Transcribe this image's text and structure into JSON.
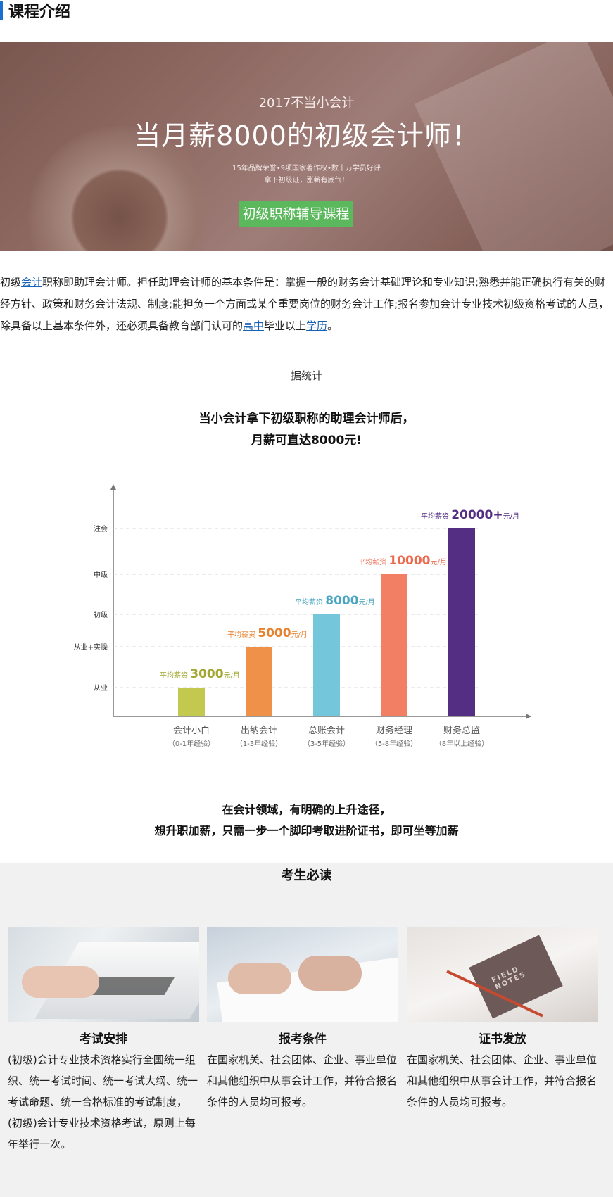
{
  "section_title": "课程介绍",
  "banner": {
    "subtitle": "2017不当小会计",
    "title": "当月薪8000的初级会计师！",
    "line1": "15年品牌荣誉•9项国家著作权•数十万学员好评",
    "line2": "拿下初级证，涨薪有底气！",
    "button": "初级职称辅导课程"
  },
  "intro": {
    "p1": "初级",
    "link1": "会计",
    "p2": "职称即助理会计师。担任助理会计师的基本条件是：掌握一般的财务会计基础理论和专业知识;熟悉并能正确执行有关的财经方针、政策和财务会计法规、制度;能担负一个方面或某个重要岗位的财务会计工作;报名参加会计专业技术初级资格考试的人员，除具备以上基本条件外，还必须具备教育部门认可的",
    "link2": "高中",
    "p3": "毕业以上",
    "link3": "学历",
    "p4": "。"
  },
  "stat_label": "据统计",
  "headline": {
    "line1": "当小会计拿下初级职称的助理会计师后，",
    "line2": "月薪可直达8000元!"
  },
  "chart_data": {
    "type": "bar",
    "y_levels": [
      "从业",
      "从业+实操",
      "初级",
      "中级",
      "注会"
    ],
    "categories": [
      "会计小白",
      "出纳会计",
      "总账会计",
      "财务经理",
      "财务总监"
    ],
    "category_notes": [
      "（0-1年经验）",
      "（1-3年经验）",
      "（3-5年经验）",
      "（5-8年经验）",
      "（8年以上经验）"
    ],
    "values": [
      3000,
      5000,
      8000,
      10000,
      20000
    ],
    "value_texts": [
      "3000",
      "5000",
      "8000",
      "10000",
      "20000+"
    ],
    "value_prefix": "平均薪资",
    "value_unit": "元/月",
    "colors": [
      "#c3c84f",
      "#f0914a",
      "#74c6da",
      "#f27e63",
      "#532e82"
    ],
    "label_colors": [
      "#a3a630",
      "#e6822f",
      "#4aa6c0",
      "#ec6a4d",
      "#532e82"
    ],
    "grid": true,
    "legend": "none"
  },
  "tagline": {
    "line1": "在会计领域，有明确的上升途径，",
    "line2": "想升职加薪，只需一步一个脚印考取进阶证书，即可坐等加薪"
  },
  "must_read": {
    "title": "考生必读",
    "cards": [
      {
        "title": "考试安排",
        "text": "(初级)会计专业技术资格实行全国统一组织、统一考试时间、统一考试大纲、统一考试命题、统一合格标准的考试制度，(初级)会计专业技术资格考试，原则上每年举行一次。"
      },
      {
        "title": "报考条件",
        "text": "在国家机关、社会团体、企业、事业单位和其他组织中从事会计工作，并符合报名条件的人员均可报考。"
      },
      {
        "title": "证书发放",
        "text": "在国家机关、社会团体、企业、事业单位和其他组织中从事会计工作，并符合报名条件的人员均可报考。"
      }
    ],
    "card3_photo_text": "FIELD NOTES"
  }
}
